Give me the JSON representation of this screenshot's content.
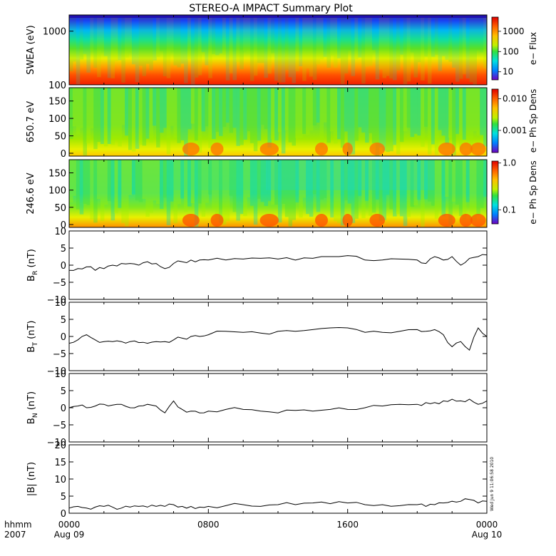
{
  "title": "STEREO-A IMPACT Summary Plot",
  "time_axis": {
    "row1_label": "hhmm",
    "row2_label": "2007",
    "ticks": [
      {
        "hhmm": "0000",
        "date": "Aug 09",
        "t": 0
      },
      {
        "hhmm": "0800",
        "date": "",
        "t": 8
      },
      {
        "hhmm": "1600",
        "date": "",
        "t": 16
      },
      {
        "hhmm": "0000",
        "date": "Aug 10",
        "t": 24
      }
    ],
    "range_hours": [
      0,
      24
    ]
  },
  "timestamp": "Wed Jun 9 11:06:58 2010",
  "colors": {
    "rainbow": [
      "#7000c0",
      "#2020ff",
      "#00a8ff",
      "#00e0e0",
      "#20e060",
      "#80e000",
      "#f0f000",
      "#ffa000",
      "#ff4000",
      "#e00000"
    ]
  },
  "chart_data": [
    {
      "type": "heatmap",
      "ylabel": "SWEA (eV)",
      "y_scale": "log",
      "ylim": [
        100,
        2000
      ],
      "yticks": [
        "1000",
        "100"
      ],
      "colorbar": {
        "label": "e− Flux",
        "ticks": [
          "1000",
          "100",
          "10"
        ],
        "scale": "log",
        "range": [
          4,
          5000
        ]
      },
      "description_bands": [
        {
          "energy_eV": 1500,
          "color": "blue"
        },
        {
          "energy_eV": 700,
          "color": "green"
        },
        {
          "energy_eV": 300,
          "color": "yellow"
        },
        {
          "energy_eV": 150,
          "color": "red"
        }
      ]
    },
    {
      "type": "heatmap",
      "ylabel": "650.7 eV",
      "ylim": [
        0,
        180
      ],
      "yticks": [
        "150",
        "100",
        "50",
        "0"
      ],
      "colorbar": {
        "label": "e− Ph Sp Dens",
        "ticks": [
          "0.010",
          "0.001"
        ],
        "scale": "log",
        "range": [
          0.0002,
          0.02
        ]
      }
    },
    {
      "type": "heatmap",
      "ylabel": "246.6 eV",
      "ylim": [
        0,
        180
      ],
      "yticks": [
        "150",
        "100",
        "50",
        "0"
      ],
      "colorbar": {
        "label": "e− Ph Sp Dens",
        "ticks": [
          "1.0",
          "0.1"
        ],
        "scale": "log",
        "range": [
          0.05,
          1.1
        ]
      }
    },
    {
      "type": "line",
      "ylabel": "B",
      "ylabel_sub": "R",
      "ylabel_unit": " (nT)",
      "ylim": [
        -10,
        10
      ],
      "yticks": [
        "10",
        "5",
        "0",
        "−5",
        "−10"
      ],
      "x": [
        0,
        0.5,
        1,
        1.5,
        2,
        2.5,
        3,
        3.5,
        4,
        4.5,
        5,
        5.5,
        6,
        6.5,
        7,
        7.5,
        8,
        9,
        10,
        11,
        12,
        13,
        14,
        15,
        16,
        17,
        18,
        19,
        20,
        20.5,
        21,
        21.5,
        22,
        22.5,
        23,
        23.5,
        24
      ],
      "values": [
        -1.5,
        -1.0,
        -0.5,
        -1.5,
        -1.0,
        0.0,
        0.5,
        0.5,
        0.0,
        1.0,
        0.5,
        -1.0,
        0.5,
        1.0,
        1.5,
        1.5,
        1.5,
        1.5,
        1.8,
        2.0,
        1.8,
        1.5,
        2.0,
        2.5,
        2.8,
        1.5,
        1.5,
        1.8,
        1.5,
        0.5,
        2.5,
        1.5,
        2.5,
        0.0,
        2.0,
        2.5,
        3.0
      ]
    },
    {
      "type": "line",
      "ylabel": "B",
      "ylabel_sub": "T",
      "ylabel_unit": " (nT)",
      "ylim": [
        -10,
        10
      ],
      "yticks": [
        "10",
        "5",
        "0",
        "−5",
        "−10"
      ],
      "x": [
        0,
        0.5,
        1,
        1.5,
        2,
        2.5,
        3,
        3.5,
        4,
        4.5,
        5,
        5.5,
        6,
        6.5,
        7,
        7.5,
        8,
        9,
        10,
        11,
        12,
        13,
        14,
        15,
        16,
        17,
        18,
        19,
        20,
        20.5,
        21,
        21.5,
        22,
        22.5,
        23,
        23.5,
        24
      ],
      "values": [
        -2.0,
        -1.0,
        0.5,
        -1.0,
        -1.5,
        -1.5,
        -1.5,
        -1.5,
        -1.8,
        -2.0,
        -1.5,
        -1.5,
        -1.0,
        -0.5,
        0.0,
        0.0,
        0.5,
        1.5,
        1.2,
        1.0,
        1.5,
        1.5,
        2.0,
        2.5,
        2.5,
        1.2,
        1.2,
        1.5,
        2.0,
        1.5,
        2.0,
        0.5,
        -3.0,
        -1.5,
        -4.0,
        2.5,
        0.0
      ]
    },
    {
      "type": "line",
      "ylabel": "B",
      "ylabel_sub": "N",
      "ylabel_unit": " (nT)",
      "ylim": [
        -10,
        10
      ],
      "yticks": [
        "10",
        "5",
        "0",
        "−5",
        "−10"
      ],
      "x": [
        0,
        0.5,
        1,
        1.5,
        2,
        2.5,
        3,
        3.5,
        4,
        4.5,
        5,
        5.5,
        6,
        6.5,
        7,
        7.5,
        8,
        9,
        10,
        11,
        12,
        13,
        14,
        15,
        16,
        17,
        18,
        19,
        20,
        20.5,
        21,
        21.5,
        22,
        22.5,
        23,
        23.5,
        24
      ],
      "values": [
        0.0,
        0.5,
        0.0,
        0.5,
        1.0,
        0.8,
        1.0,
        0.0,
        0.5,
        1.0,
        0.5,
        -1.5,
        2.0,
        -0.5,
        -1.0,
        -1.5,
        -1.0,
        -0.5,
        -0.5,
        -1.0,
        -1.5,
        -0.8,
        -1.0,
        -0.5,
        -0.5,
        0.0,
        0.5,
        1.0,
        1.0,
        1.5,
        1.5,
        2.0,
        2.5,
        2.0,
        2.5,
        1.0,
        2.0
      ]
    },
    {
      "type": "line",
      "ylabel": "|B| (nT)",
      "ylim": [
        0,
        20
      ],
      "yticks": [
        "20",
        "15",
        "10",
        "5",
        "0"
      ],
      "x": [
        0,
        0.5,
        1,
        1.5,
        2,
        2.5,
        3,
        3.5,
        4,
        4.5,
        5,
        5.5,
        6,
        6.5,
        7,
        7.5,
        8,
        9,
        10,
        11,
        12,
        13,
        14,
        15,
        16,
        17,
        18,
        19,
        20,
        20.5,
        21,
        21.5,
        22,
        22.5,
        23,
        23.5,
        24
      ],
      "values": [
        1.5,
        2.0,
        1.5,
        1.8,
        2.0,
        1.8,
        1.5,
        1.8,
        2.0,
        1.8,
        2.0,
        2.0,
        2.5,
        2.0,
        2.0,
        1.8,
        2.0,
        2.2,
        2.5,
        2.0,
        2.5,
        2.5,
        3.0,
        2.8,
        3.0,
        2.5,
        2.5,
        2.2,
        2.5,
        2.0,
        2.5,
        3.0,
        3.5,
        3.5,
        4.0,
        3.0,
        3.5
      ]
    }
  ]
}
